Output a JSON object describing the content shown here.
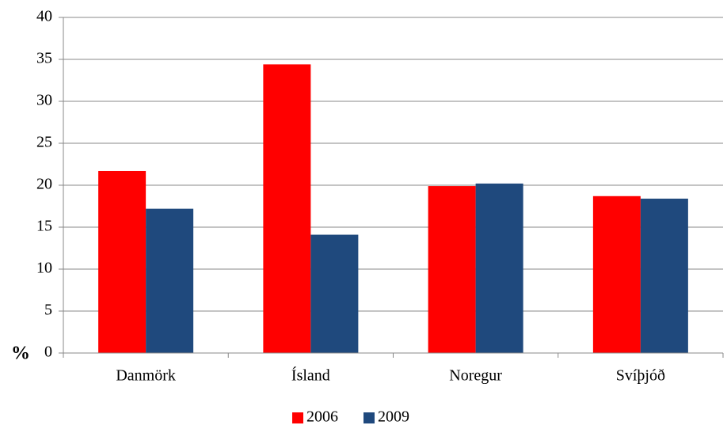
{
  "chart_data": {
    "type": "bar",
    "y_label": "%",
    "categories": [
      "Danmörk",
      "Ísland",
      "Noregur",
      "Svíþjóð"
    ],
    "series": [
      {
        "name": "2006",
        "color": "#ff0000",
        "values": [
          21.7,
          34.4,
          19.9,
          18.7
        ]
      },
      {
        "name": "2009",
        "color": "#1f497d",
        "values": [
          17.2,
          14.1,
          20.2,
          18.4
        ]
      }
    ],
    "ylim": [
      0,
      40
    ],
    "yticks": [
      0,
      5,
      10,
      15,
      20,
      25,
      30,
      35,
      40
    ],
    "grid": true,
    "legend": "bottom"
  }
}
